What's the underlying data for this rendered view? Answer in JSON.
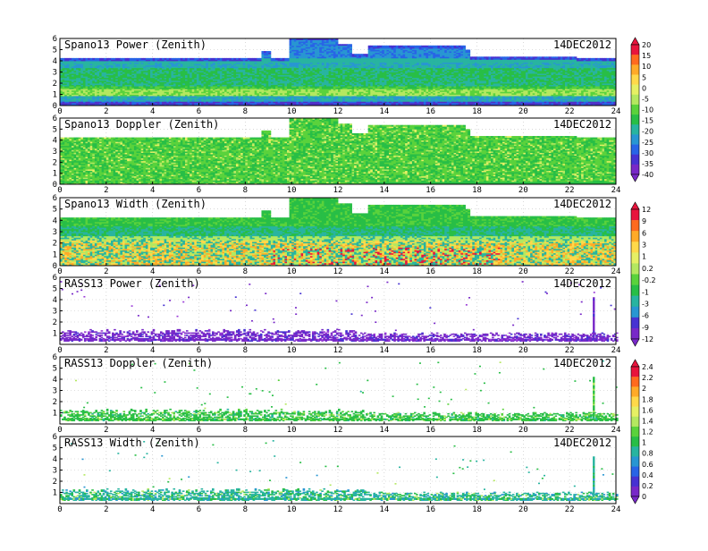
{
  "chart_data": [
    {
      "type": "heatmap",
      "title": "Spano13 Power (Zenith)",
      "date": "14DEC2012",
      "xlim": [
        0,
        24
      ],
      "ylim": [
        0,
        6
      ],
      "xticks": [
        0,
        2,
        4,
        6,
        8,
        10,
        12,
        14,
        16,
        18,
        20,
        22,
        24
      ],
      "yticks": [
        0,
        1,
        2,
        3,
        4,
        5,
        6
      ],
      "kind": "power"
    },
    {
      "type": "heatmap",
      "title": "Spano13 Doppler (Zenith)",
      "date": "14DEC2012",
      "xlim": [
        0,
        24
      ],
      "ylim": [
        0,
        6
      ],
      "xticks": [
        0,
        2,
        4,
        6,
        8,
        10,
        12,
        14,
        16,
        18,
        20,
        22,
        24
      ],
      "yticks": [
        0,
        1,
        2,
        3,
        4,
        5,
        6
      ],
      "kind": "doppler"
    },
    {
      "type": "heatmap",
      "title": "Spano13 Width (Zenith)",
      "date": "14DEC2012",
      "xlim": [
        0,
        24
      ],
      "ylim": [
        0,
        6
      ],
      "xticks": [
        0,
        2,
        4,
        6,
        8,
        10,
        12,
        14,
        16,
        18,
        20,
        22,
        24
      ],
      "yticks": [
        0,
        1,
        2,
        3,
        4,
        5,
        6
      ],
      "kind": "width"
    },
    {
      "type": "heatmap",
      "title": "RASS13 Power (Zenith)",
      "date": "14DEC2012",
      "xlim": [
        0,
        24
      ],
      "ylim": [
        0,
        6
      ],
      "xticks": [
        0,
        2,
        4,
        6,
        8,
        10,
        12,
        14,
        16,
        18,
        20,
        22,
        24
      ],
      "yticks": [
        1,
        2,
        3,
        4,
        5,
        6
      ],
      "kind": "rpower"
    },
    {
      "type": "heatmap",
      "title": "RASS13 Doppler (Zenith)",
      "date": "14DEC2012",
      "xlim": [
        0,
        24
      ],
      "ylim": [
        0,
        6
      ],
      "xticks": [
        0,
        2,
        4,
        6,
        8,
        10,
        12,
        14,
        16,
        18,
        20,
        22,
        24
      ],
      "yticks": [
        1,
        2,
        3,
        4,
        5,
        6
      ],
      "kind": "rdoppler"
    },
    {
      "type": "heatmap",
      "title": "RASS13 Width (Zenith)",
      "date": "14DEC2012",
      "xlim": [
        0,
        24
      ],
      "ylim": [
        0,
        6
      ],
      "xticks": [
        0,
        2,
        4,
        6,
        8,
        10,
        12,
        14,
        16,
        18,
        20,
        22,
        24
      ],
      "yticks": [
        1,
        2,
        3,
        4,
        5,
        6
      ],
      "kind": "rwidth"
    }
  ],
  "colorbars": [
    {
      "labels": [
        "20",
        "15",
        "10",
        "5",
        "0",
        "-5",
        "-10",
        "-15",
        "-20",
        "-25",
        "-30",
        "-35",
        "-40"
      ],
      "colors": [
        "#e8143c",
        "#ff6a1e",
        "#ffaa28",
        "#ffd94a",
        "#e6f064",
        "#b4e860",
        "#5ad23c",
        "#28be46",
        "#28b4a0",
        "#2896d2",
        "#2864e6",
        "#4632d2",
        "#7828c8"
      ]
    },
    {
      "labels": [
        "12",
        "9",
        "6",
        "3",
        "1",
        "0.2",
        "-0.2",
        "-1",
        "-3",
        "-6",
        "-9",
        "-12"
      ],
      "colors": [
        "#e8143c",
        "#ff6a1e",
        "#ffaa28",
        "#ffd94a",
        "#e6f064",
        "#b4e860",
        "#5ad23c",
        "#28be46",
        "#28b4a0",
        "#2896d2",
        "#4632d2",
        "#7828c8"
      ]
    },
    {
      "labels": [
        "2.4",
        "2.2",
        "2",
        "1.8",
        "1.6",
        "1.4",
        "1.2",
        "1",
        "0.8",
        "0.6",
        "0.4",
        "0.2",
        "0"
      ],
      "colors": [
        "#e8143c",
        "#ff6a1e",
        "#ffaa28",
        "#ffd94a",
        "#e6f064",
        "#b4e860",
        "#5ad23c",
        "#28be46",
        "#28b4a0",
        "#2896d2",
        "#2864e6",
        "#4632d2",
        "#7828c8"
      ]
    }
  ]
}
